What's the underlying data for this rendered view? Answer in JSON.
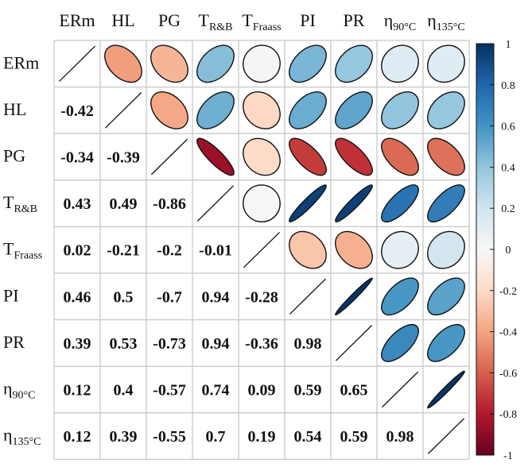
{
  "chart_data": {
    "type": "heatmap",
    "title": "",
    "variables": [
      {
        "main": "ERm",
        "sub": ""
      },
      {
        "main": "HL",
        "sub": ""
      },
      {
        "main": "PG",
        "sub": ""
      },
      {
        "main": "T",
        "sub": "R&B"
      },
      {
        "main": "T",
        "sub": "Fraass"
      },
      {
        "main": "PI",
        "sub": ""
      },
      {
        "main": "PR",
        "sub": ""
      },
      {
        "main": "η",
        "sub": "90°C"
      },
      {
        "main": "η",
        "sub": "135°C"
      }
    ],
    "matrix": [
      [
        1,
        -0.42,
        -0.34,
        0.43,
        0.02,
        0.46,
        0.39,
        0.12,
        0.12
      ],
      [
        -0.42,
        1,
        -0.39,
        0.49,
        -0.21,
        0.5,
        0.53,
        0.4,
        0.39
      ],
      [
        -0.34,
        -0.39,
        1,
        -0.86,
        -0.2,
        -0.7,
        -0.73,
        -0.57,
        -0.55
      ],
      [
        0.43,
        0.49,
        -0.86,
        1,
        -0.01,
        0.94,
        0.94,
        0.74,
        0.7
      ],
      [
        0.02,
        -0.21,
        -0.2,
        -0.01,
        1,
        -0.28,
        -0.36,
        0.09,
        0.19
      ],
      [
        0.46,
        0.5,
        -0.7,
        0.94,
        -0.28,
        1,
        0.98,
        0.59,
        0.54
      ],
      [
        0.39,
        0.53,
        -0.73,
        0.94,
        -0.36,
        0.98,
        1,
        0.65,
        0.59
      ],
      [
        0.12,
        0.4,
        -0.57,
        0.74,
        0.09,
        0.59,
        0.65,
        1,
        0.98
      ],
      [
        0.12,
        0.39,
        -0.55,
        0.7,
        0.19,
        0.54,
        0.59,
        0.98,
        1
      ]
    ],
    "lower_triangle_display": "numbers",
    "upper_triangle_display": "ellipses",
    "diagonal_display": "line",
    "colorbar": {
      "range": [
        -1,
        1
      ],
      "ticks": [
        "1",
        "0.8",
        "0.6",
        "0.4",
        "0.2",
        "0",
        "-0.2",
        "-0.4",
        "-0.6",
        "-0.8",
        "-1"
      ],
      "colors": {
        "pos_strong": "#0c3a78",
        "pos_mid": "#4b95c9",
        "neutral": "#f7f7f7",
        "neg_mid": "#f08e69",
        "neg_strong": "#7f0c24"
      }
    },
    "grid": true,
    "legend_position": "right"
  }
}
